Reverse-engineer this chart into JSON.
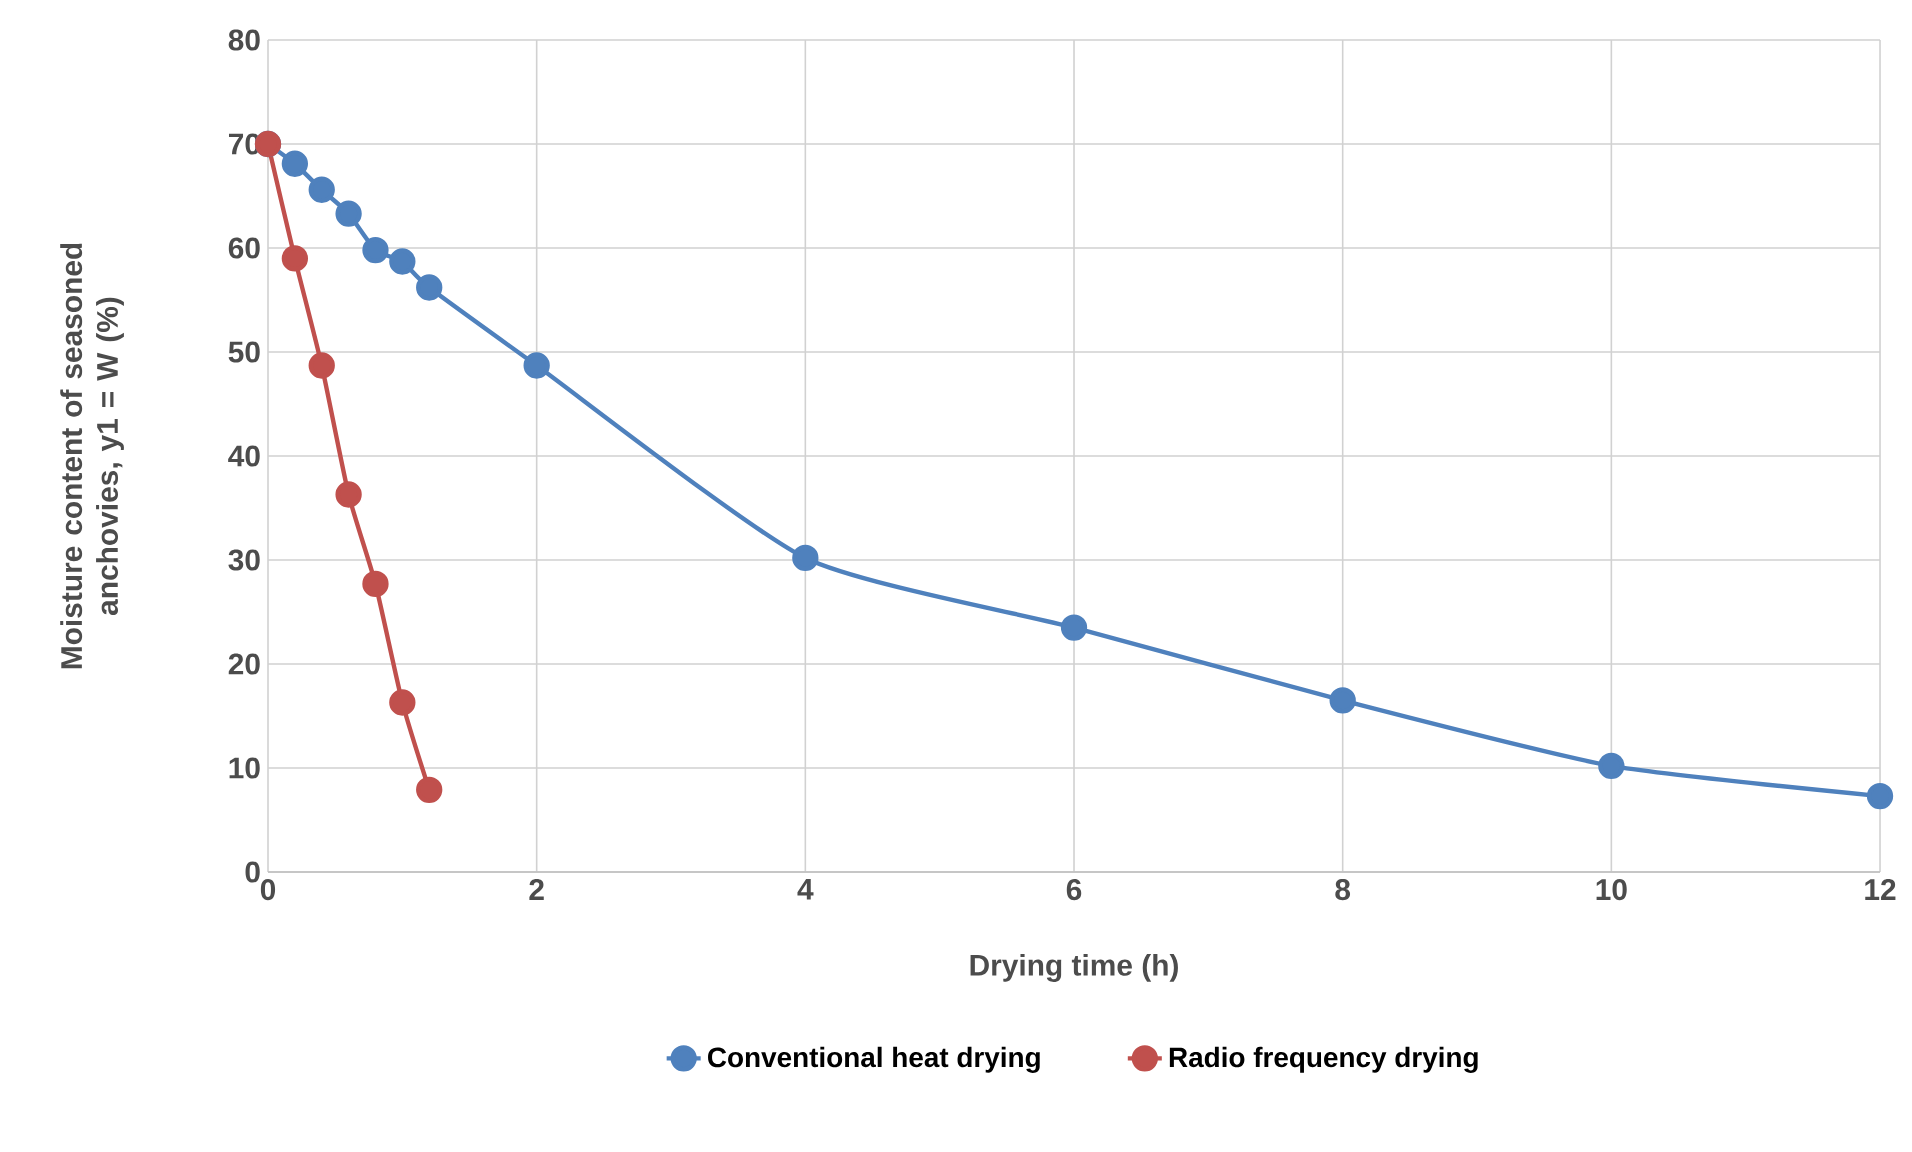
{
  "chart_data": {
    "type": "line",
    "xlabel": "Drying time (h)",
    "ylabel": "Moisture content of seasoned anchovies, y1 = W (%)",
    "xlim": [
      0,
      12
    ],
    "ylim": [
      0,
      80
    ],
    "xticks": [
      0,
      2,
      4,
      6,
      8,
      10,
      12
    ],
    "yticks": [
      0,
      10,
      20,
      30,
      40,
      50,
      60,
      70,
      80
    ],
    "grid": true,
    "legend": "bottom",
    "marker": "circle",
    "line_style": "solid",
    "series": [
      {
        "name": "Conventional heat drying",
        "color": "#4f81bd",
        "x": [
          0,
          0.2,
          0.4,
          0.6,
          0.8,
          1.0,
          1.2,
          2,
          4,
          6,
          8,
          10,
          12
        ],
        "values": [
          70,
          68.1,
          65.6,
          63.3,
          59.8,
          58.7,
          56.2,
          48.7,
          30.2,
          23.5,
          16.5,
          10.2,
          7.3
        ]
      },
      {
        "name": "Radio frequency drying",
        "color": "#c0504d",
        "x": [
          0,
          0.2,
          0.4,
          0.6,
          0.8,
          1.0,
          1.2
        ],
        "values": [
          70,
          59,
          48.7,
          36.3,
          27.7,
          16.3,
          7.9
        ]
      }
    ]
  }
}
